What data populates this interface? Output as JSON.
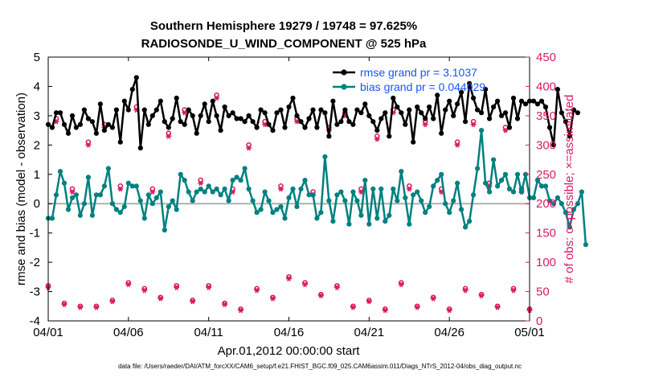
{
  "figure": {
    "title_line1": "Southern Hemisphere 19279 / 19748 = 97.625%",
    "title_line2": "RADIOSONDE_U_WIND_COMPONENT @ 525 hPa",
    "footer": "data file: /Users/raeder/DAI/ATM_forcXX/CAM6_setup/f.e21.FHIST_BGC.f09_025.CAM6assim.011/Diags_NTrS_2012-04/obs_diag_output.nc"
  },
  "colors": {
    "rmse": "#000000",
    "bias": "#008080",
    "obs": "#d81b60",
    "legend_text": "#1a53ff",
    "zero_line": "#b0b0b0",
    "frame": "#000000"
  },
  "chart_data": {
    "type": "line",
    "title": "Southern Hemisphere 19279 / 19748 = 97.625%",
    "subtitle": "RADIOSONDE_U_WIND_COMPONENT @ 525 hPa",
    "xlabel": "Apr.01,2012 00:00:00 start",
    "ylabel": "rmse and bias (model - observation)",
    "ylabel_right": "# of obs: o=possible; ×=assimilated",
    "xlim": [
      0,
      30
    ],
    "ylim": [
      -4,
      5
    ],
    "ylim_right": [
      0,
      450
    ],
    "x_ticks": [
      0,
      5,
      10,
      15,
      20,
      25,
      30
    ],
    "x_tick_labels": [
      "04/01",
      "04/06",
      "04/11",
      "04/16",
      "04/21",
      "04/26",
      "05/01"
    ],
    "y_ticks": [
      -4,
      -3,
      -2,
      -1,
      0,
      1,
      2,
      3,
      4,
      5
    ],
    "y_tick_labels": [
      "-4",
      "-3",
      "-2",
      "-1",
      "0",
      "1",
      "2",
      "3",
      "4",
      "5"
    ],
    "y_right_ticks": [
      0,
      50,
      100,
      150,
      200,
      250,
      300,
      350,
      400,
      450
    ],
    "y_right_tick_labels": [
      "0",
      "50",
      "100",
      "150",
      "200",
      "250",
      "300",
      "350",
      "400",
      "450"
    ],
    "legend": [
      {
        "name": "rmse",
        "label": "rmse grand pr = 3.1037"
      },
      {
        "name": "bias",
        "label": "bias grand pr = 0.044029"
      }
    ],
    "series": [
      {
        "name": "rmse",
        "axis": "left",
        "x_start": 0,
        "x_step": 0.25,
        "values": [
          2.7,
          2.6,
          3.1,
          3.1,
          2.7,
          2.4,
          3.0,
          2.6,
          2.7,
          3.2,
          2.9,
          2.8,
          2.4,
          3.4,
          2.5,
          2.7,
          2.6,
          3.2,
          2.1,
          3.5,
          3.2,
          3.9,
          4.3,
          1.9,
          3.2,
          2.7,
          3.0,
          3.2,
          3.5,
          2.8,
          2.6,
          2.9,
          3.6,
          2.8,
          2.7,
          3.2,
          3.0,
          2.4,
          3.0,
          3.4,
          2.8,
          3.5,
          3.0,
          2.5,
          3.3,
          3.0,
          3.1,
          2.9,
          2.9,
          2.8,
          3.0,
          2.8,
          2.6,
          3.2,
          3.1,
          2.7,
          2.5,
          3.1,
          3.2,
          2.6,
          3.3,
          3.6,
          3.0,
          2.8,
          2.6,
          2.9,
          3.2,
          2.6,
          3.2,
          3.1,
          2.3,
          3.5,
          2.7,
          2.8,
          3.2,
          2.8,
          2.7,
          3.2,
          3.1,
          3.4,
          3.0,
          2.8,
          2.5,
          2.9,
          3.1,
          2.3,
          3.6,
          3.3,
          3.1,
          2.7,
          3.2,
          2.1,
          3.3,
          3.1,
          2.9,
          3.3,
          2.9,
          3.7,
          2.4,
          3.2,
          3.5,
          3.0,
          3.4,
          3.8,
          2.8,
          4.1,
          3.6,
          3.2,
          3.1,
          3.9,
          2.9,
          3.3,
          3.5,
          3.0,
          3.1,
          2.6,
          3.6,
          2.9,
          3.5,
          3.4,
          3.5,
          3.5,
          3.4,
          3.5,
          3.3,
          2.6,
          2.0,
          3.9,
          3.1,
          2.8,
          2.3,
          3.2,
          3.1
        ]
      },
      {
        "name": "bias",
        "axis": "left",
        "x_start": 0,
        "x_step": 0.25,
        "values": [
          -0.5,
          -0.5,
          0.3,
          1.1,
          0.7,
          -0.2,
          0.2,
          0.3,
          -0.4,
          0.0,
          0.9,
          -0.4,
          0.3,
          0.3,
          0.6,
          1.2,
          0.0,
          -0.2,
          -0.3,
          -0.1,
          0.7,
          0.6,
          0.6,
          0.1,
          -0.5,
          0.3,
          0.0,
          0.2,
          0.4,
          -0.9,
          -0.1,
          0.1,
          -0.2,
          1.0,
          0.8,
          0.4,
          0.1,
          0.4,
          0.5,
          0.4,
          0.6,
          0.4,
          0.5,
          0.3,
          0.5,
          0.1,
          0.8,
          0.9,
          0.8,
          1.2,
          0.5,
          0.1,
          -0.3,
          -0.2,
          0.4,
          0.1,
          -0.3,
          -0.2,
          -0.1,
          -0.5,
          0.2,
          0.5,
          -0.1,
          0.5,
          0.8,
          0.3,
          0.3,
          -0.5,
          -0.3,
          1.6,
          0.1,
          -0.6,
          0.3,
          0.4,
          0.1,
          -0.7,
          0.4,
          0.1,
          -0.4,
          0.8,
          -0.7,
          0.5,
          -0.5,
          0.5,
          -0.6,
          -0.4,
          0.5,
          0.1,
          1.1,
          0.2,
          -0.7,
          0.3,
          0.4,
          0.1,
          -0.3,
          -0.1,
          0.6,
          0.8,
          1.0,
          0.0,
          -0.3,
          0.1,
          0.7,
          -0.2,
          -0.8,
          -0.6,
          0.3,
          1.2,
          2.5,
          0.7,
          0.4,
          1.5,
          0.6,
          0.8,
          1.0,
          0.5,
          0.4,
          1.0,
          0.4,
          1.0,
          0.2,
          0.2,
          0.8,
          0.6,
          0.6,
          0.1,
          0.0,
          0.2,
          0.0,
          -0.3,
          -0.8,
          -0.2,
          0.0,
          0.4,
          -1.4
        ]
      },
      {
        "name": "obs_possible",
        "axis": "right",
        "marker": "o",
        "x": [
          0.0,
          0.5,
          1.0,
          1.5,
          2.0,
          2.5,
          3.0,
          3.5,
          4.0,
          4.5,
          5.0,
          5.5,
          6.0,
          6.5,
          7.0,
          7.5,
          8.0,
          8.5,
          9.0,
          9.5,
          10.0,
          10.5,
          11.0,
          11.5,
          12.0,
          12.5,
          13.0,
          13.5,
          14.0,
          14.5,
          15.0,
          15.5,
          16.0,
          16.5,
          17.0,
          17.5,
          18.0,
          18.5,
          19.0,
          19.5,
          20.0,
          20.5,
          21.0,
          21.5,
          22.0,
          22.5,
          23.0,
          23.5,
          24.0,
          24.5,
          25.0,
          25.5,
          26.0,
          26.5,
          27.0,
          27.5,
          28.0,
          28.5,
          29.0,
          29.5,
          30.0
        ],
        "values": [
          60,
          345,
          30,
          225,
          25,
          305,
          25,
          335,
          35,
          230,
          65,
          365,
          55,
          225,
          40,
          320,
          60,
          360,
          35,
          240,
          60,
          385,
          30,
          225,
          20,
          300,
          55,
          340,
          40,
          230,
          75,
          345,
          65,
          220,
          45,
          330,
          60,
          355,
          25,
          225,
          35,
          315,
          20,
          360,
          65,
          230,
          25,
          340,
          40,
          225,
          20,
          305,
          55,
          340,
          45,
          235,
          25,
          330,
          55,
          225,
          20
        ]
      },
      {
        "name": "obs_assimilated",
        "axis": "right",
        "marker": "x",
        "x": [
          0.0,
          0.5,
          1.0,
          1.5,
          2.0,
          2.5,
          3.0,
          3.5,
          4.0,
          4.5,
          5.0,
          5.5,
          6.0,
          6.5,
          7.0,
          7.5,
          8.0,
          8.5,
          9.0,
          9.5,
          10.0,
          10.5,
          11.0,
          11.5,
          12.0,
          12.5,
          13.0,
          13.5,
          14.0,
          14.5,
          15.0,
          15.5,
          16.0,
          16.5,
          17.0,
          17.5,
          18.0,
          18.5,
          19.0,
          19.5,
          20.0,
          20.5,
          21.0,
          21.5,
          22.0,
          22.5,
          23.0,
          23.5,
          24.0,
          24.5,
          25.0,
          25.5,
          26.0,
          26.5,
          27.0,
          27.5,
          28.0,
          28.5,
          29.0,
          29.5,
          30.0
        ],
        "values": [
          57,
          340,
          28,
          220,
          23,
          300,
          23,
          330,
          33,
          225,
          62,
          360,
          52,
          220,
          38,
          315,
          57,
          355,
          33,
          235,
          57,
          380,
          28,
          220,
          18,
          295,
          52,
          335,
          38,
          225,
          72,
          340,
          62,
          215,
          43,
          325,
          57,
          350,
          23,
          220,
          33,
          310,
          18,
          355,
          62,
          225,
          23,
          335,
          38,
          220,
          18,
          300,
          52,
          335,
          43,
          230,
          23,
          325,
          52,
          220,
          18
        ]
      }
    ]
  }
}
